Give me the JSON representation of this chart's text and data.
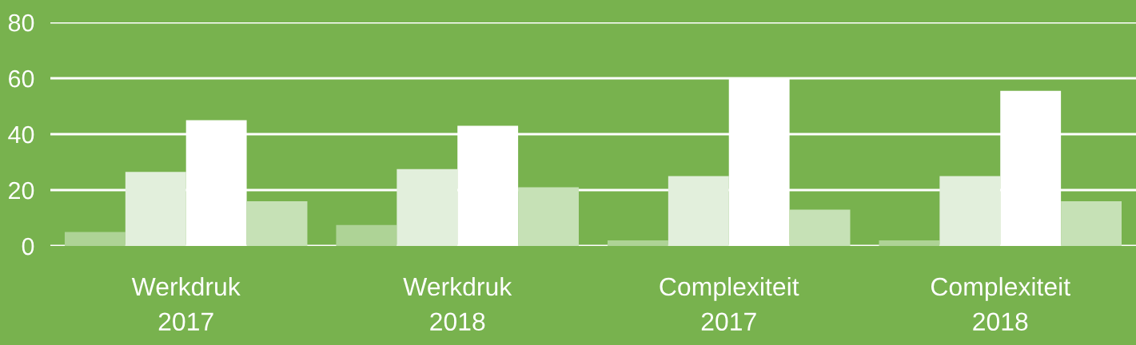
{
  "chart_data": {
    "type": "bar",
    "categories": [
      "Werkdruk\n2017",
      "Werkdruk\n2018",
      "Complexiteit\n2017",
      "Complexiteit\n2018"
    ],
    "series": [
      {
        "color": "#aed396",
        "values": [
          5,
          7.5,
          2,
          2
        ]
      },
      {
        "color": "#e2efdc",
        "values": [
          26.5,
          27.5,
          25,
          25
        ]
      },
      {
        "color": "#ffffff",
        "values": [
          45,
          43,
          60,
          55.5
        ]
      },
      {
        "color": "#c6e1b6",
        "values": [
          16,
          21,
          13,
          16
        ]
      }
    ],
    "ylim": [
      0,
      80
    ],
    "yticks": [
      0,
      20,
      40,
      60,
      80
    ],
    "grid": "y",
    "legend": false
  }
}
